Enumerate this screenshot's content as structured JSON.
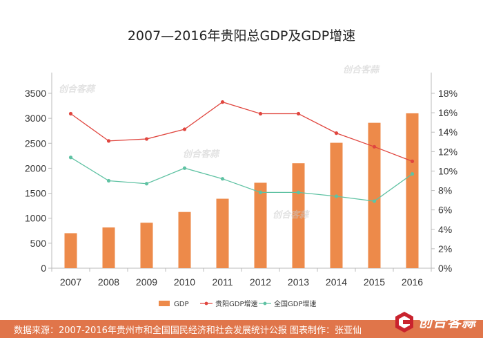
{
  "chart_data": {
    "type": "bar",
    "title": "2007—2016年贵阳总GDP及GDP增速",
    "categories": [
      "2007",
      "2008",
      "2009",
      "2010",
      "2011",
      "2012",
      "2013",
      "2014",
      "2015",
      "2016"
    ],
    "series": [
      {
        "name": "GDP",
        "type": "bar",
        "axis": "left",
        "color": "#ed8a4a",
        "values": [
          700,
          815,
          910,
          1125,
          1390,
          1710,
          2100,
          2510,
          2910,
          3100
        ]
      },
      {
        "name": "贵阳GDP增速",
        "type": "line",
        "axis": "right",
        "color": "#e0463f",
        "values": [
          15.9,
          13.1,
          13.3,
          14.3,
          17.1,
          15.9,
          15.9,
          13.9,
          12.5,
          11.0
        ]
      },
      {
        "name": "全国GDP增速",
        "type": "line",
        "axis": "right",
        "color": "#5fc2a3",
        "values": [
          11.4,
          9.0,
          8.7,
          10.3,
          9.2,
          7.8,
          7.8,
          7.4,
          6.9,
          9.7
        ]
      }
    ],
    "ylim_left": [
      0,
      3500
    ],
    "yticks_left": [
      "0",
      "500",
      "1000",
      "1500",
      "2000",
      "2500",
      "3000",
      "3500"
    ],
    "ylim_right": [
      0,
      18
    ],
    "yticks_right": [
      "0%",
      "2%",
      "4%",
      "6%",
      "8%",
      "10%",
      "12%",
      "14%",
      "16%",
      "18%"
    ],
    "grid": false,
    "legend_position": "bottom"
  },
  "footer": {
    "source_text": "数据来源：2007-2016年贵州市和全国国民经济和社会发展统计公报  图表制作：张亚仙",
    "logo_text": "创合客蒜"
  },
  "watermark": {
    "text": "创合客蒜"
  }
}
